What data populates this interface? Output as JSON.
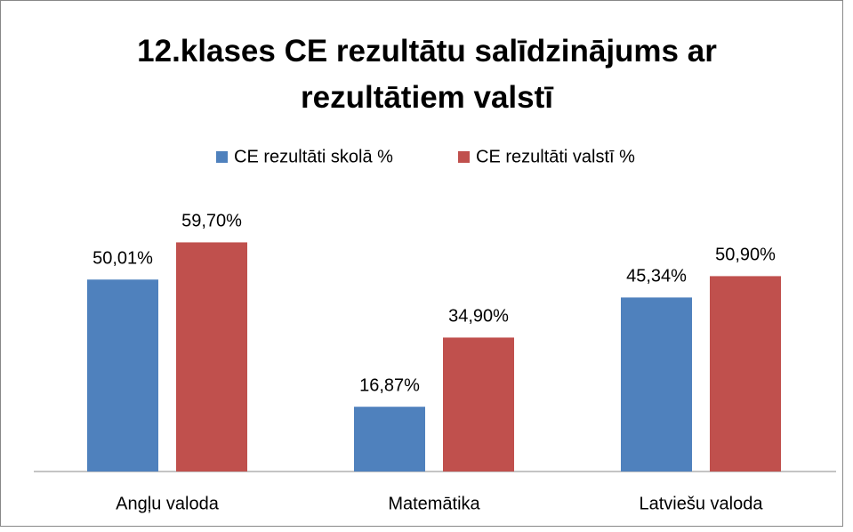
{
  "chart_data": {
    "type": "bar",
    "title": "12.klases CE rezultātu salīdzinājums ar rezultātiem valstī",
    "categories": [
      "Angļu valoda",
      "Matemātika",
      "Latviešu valoda"
    ],
    "series": [
      {
        "name": "CE rezultāti skolā %",
        "color": "#4f81bd",
        "values": [
          50.01,
          16.87,
          45.34
        ],
        "value_labels": [
          "50,01%",
          "16,87%",
          "45,34%"
        ]
      },
      {
        "name": "CE rezultāti valstī %",
        "color": "#c0504d",
        "values": [
          59.7,
          34.9,
          50.9
        ],
        "value_labels": [
          "59,70%",
          "34,90%",
          "50,90%"
        ]
      }
    ],
    "ylim": [
      0,
      70
    ],
    "legend": "top"
  }
}
